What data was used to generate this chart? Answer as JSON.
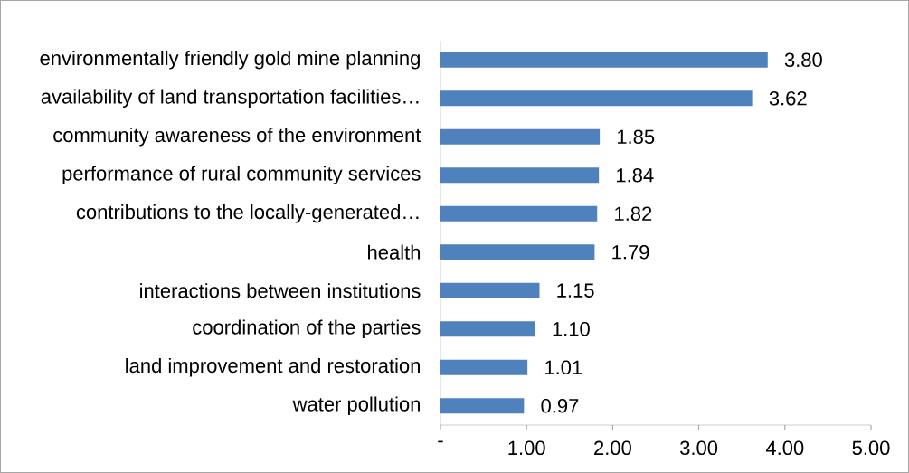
{
  "chart_data": {
    "type": "bar",
    "orientation": "horizontal",
    "categories": [
      "environmentally friendly gold mine planning",
      "availability of land transportation facilities…",
      "community awareness of the environment",
      "performance of rural community services",
      "contributions to the locally-generated…",
      "health",
      "interactions between institutions",
      "coordination of the parties",
      "land improvement and restoration",
      "water pollution"
    ],
    "values": [
      3.8,
      3.62,
      1.85,
      1.84,
      1.82,
      1.79,
      1.15,
      1.1,
      1.01,
      0.97
    ],
    "value_labels": [
      "3.80",
      "3.62",
      "1.85",
      "1.84",
      "1.82",
      "1.79",
      "1.15",
      "1.10",
      "1.01",
      "0.97"
    ],
    "color": "#4f81bd",
    "xlim": [
      0,
      5
    ],
    "xticks": [
      {
        "value": 0,
        "label": "-"
      },
      {
        "value": 1,
        "label": "1.00"
      },
      {
        "value": 2,
        "label": "2.00"
      },
      {
        "value": 3,
        "label": "3.00"
      },
      {
        "value": 4,
        "label": "4.00"
      },
      {
        "value": 5,
        "label": "5.00"
      }
    ],
    "grid": false
  }
}
